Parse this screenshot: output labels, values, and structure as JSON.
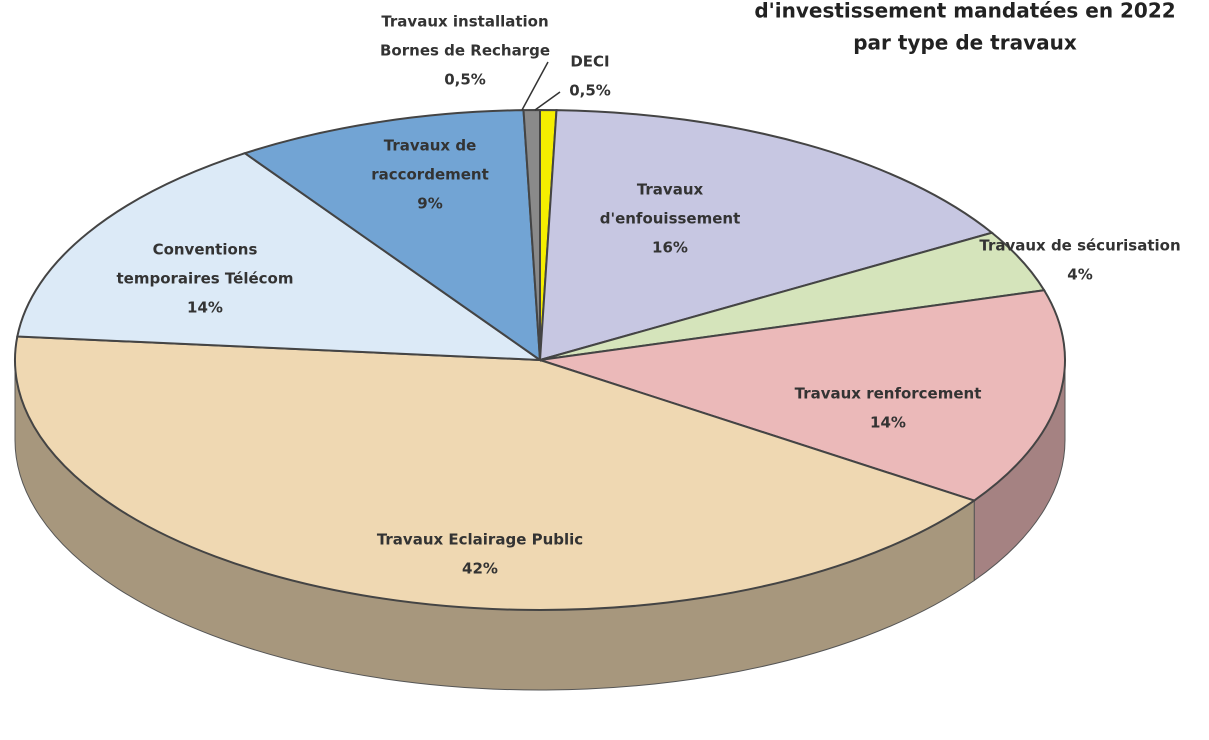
{
  "chart_data": {
    "type": "pie",
    "title": [
      "d'investissement mandatées en 2022",
      "par type de travaux"
    ],
    "labels": [
      [
        "DECI"
      ],
      [
        "Travaux",
        "d'enfouissement"
      ],
      [
        "Travaux de sécurisation"
      ],
      [
        "Travaux renforcement"
      ],
      [
        "Travaux Eclairage Public"
      ],
      [
        "Conventions",
        "temporaires Télécom"
      ],
      [
        "Travaux de",
        "raccordement"
      ],
      [
        "Travaux installation",
        "Bornes de Recharge"
      ]
    ],
    "values": [
      0.5,
      16,
      4,
      14,
      42,
      14,
      9,
      0.5
    ],
    "value_labels": [
      "0,5%",
      "16%",
      "4%",
      "14%",
      "42%",
      "14%",
      "9%",
      "0,5%"
    ],
    "colors": [
      "#f5ee00",
      "#c7c7e2",
      "#d5e4bb",
      "#ebb9b9",
      "#efd8b2",
      "#dceaf7",
      "#72a4d4",
      "#8a8a8a"
    ]
  }
}
